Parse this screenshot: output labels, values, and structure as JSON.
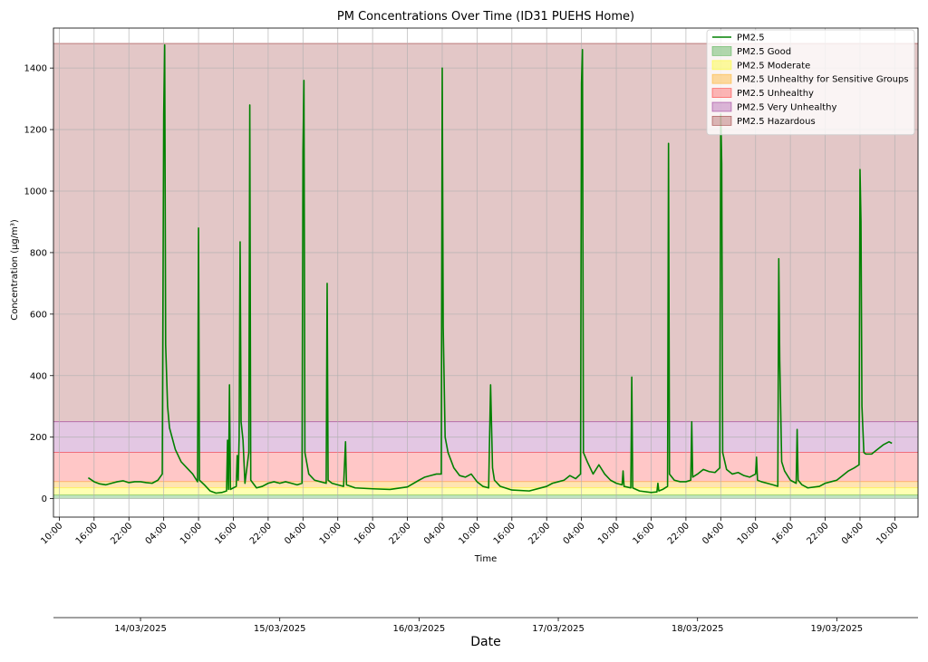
{
  "chart_data": {
    "type": "line",
    "title": "PM Concentrations Over Time (ID31 PUEHS Home)",
    "xlabel": "Time",
    "ylabel": "Concentration (µg/m³)",
    "secondary_xlabel": "Date",
    "ylim": [
      -60,
      1530
    ],
    "y_ticks": [
      0,
      200,
      400,
      600,
      800,
      1000,
      1200,
      1400
    ],
    "x_range_hours": [
      "13/03/2025 09:00",
      "19/03/2025 14:00"
    ],
    "x_ticks": [
      {
        "t": "13/03/2025 10:00",
        "label": "10:00"
      },
      {
        "t": "13/03/2025 16:00",
        "label": "16:00"
      },
      {
        "t": "13/03/2025 22:00",
        "label": "22:00"
      },
      {
        "t": "14/03/2025 04:00",
        "label": "04:00"
      },
      {
        "t": "14/03/2025 10:00",
        "label": "10:00"
      },
      {
        "t": "14/03/2025 16:00",
        "label": "16:00"
      },
      {
        "t": "14/03/2025 22:00",
        "label": "22:00"
      },
      {
        "t": "15/03/2025 04:00",
        "label": "04:00"
      },
      {
        "t": "15/03/2025 10:00",
        "label": "10:00"
      },
      {
        "t": "15/03/2025 16:00",
        "label": "16:00"
      },
      {
        "t": "15/03/2025 22:00",
        "label": "22:00"
      },
      {
        "t": "16/03/2025 04:00",
        "label": "04:00"
      },
      {
        "t": "16/03/2025 10:00",
        "label": "10:00"
      },
      {
        "t": "16/03/2025 16:00",
        "label": "16:00"
      },
      {
        "t": "16/03/2025 22:00",
        "label": "22:00"
      },
      {
        "t": "17/03/2025 04:00",
        "label": "04:00"
      },
      {
        "t": "17/03/2025 10:00",
        "label": "10:00"
      },
      {
        "t": "17/03/2025 16:00",
        "label": "16:00"
      },
      {
        "t": "17/03/2025 22:00",
        "label": "22:00"
      },
      {
        "t": "18/03/2025 04:00",
        "label": "04:00"
      },
      {
        "t": "18/03/2025 10:00",
        "label": "10:00"
      },
      {
        "t": "18/03/2025 16:00",
        "label": "16:00"
      },
      {
        "t": "18/03/2025 22:00",
        "label": "22:00"
      },
      {
        "t": "19/03/2025 04:00",
        "label": "04:00"
      },
      {
        "t": "19/03/2025 10:00",
        "label": "10:00"
      }
    ],
    "date_ticks": [
      {
        "t": "14/03/2025 00:00",
        "label": "14/03/2025"
      },
      {
        "t": "15/03/2025 00:00",
        "label": "15/03/2025"
      },
      {
        "t": "16/03/2025 00:00",
        "label": "16/03/2025"
      },
      {
        "t": "17/03/2025 00:00",
        "label": "17/03/2025"
      },
      {
        "t": "18/03/2025 00:00",
        "label": "18/03/2025"
      },
      {
        "t": "19/03/2025 00:00",
        "label": "19/03/2025"
      }
    ],
    "grid": true,
    "legend_position": "top-right",
    "bands": [
      {
        "name": "PM2.5 Good",
        "from": 0,
        "to": 12,
        "color": "#2ca02c",
        "alpha": 0.3
      },
      {
        "name": "PM2.5 Moderate",
        "from": 12,
        "to": 35.4,
        "color": "#ffff00",
        "alpha": 0.3
      },
      {
        "name": "PM2.5 Unhealthy for Sensitive Groups",
        "from": 35.4,
        "to": 55.4,
        "color": "#ffa500",
        "alpha": 0.3
      },
      {
        "name": "PM2.5 Unhealthy",
        "from": 55.4,
        "to": 150.4,
        "color": "#ff0000",
        "alpha": 0.22
      },
      {
        "name": "PM2.5 Very Unhealthy",
        "from": 150.4,
        "to": 250.4,
        "color": "#800080",
        "alpha": 0.22
      },
      {
        "name": "PM2.5 Hazardous",
        "from": 250.4,
        "to": 1480,
        "color": "#800000",
        "alpha": 0.22
      }
    ],
    "series": [
      {
        "name": "PM2.5",
        "color": "#008000",
        "points": [
          [
            "13/03/2025 15:00",
            68
          ],
          [
            "13/03/2025 16:00",
            55
          ],
          [
            "13/03/2025 17:00",
            48
          ],
          [
            "13/03/2025 18:00",
            45
          ],
          [
            "13/03/2025 19:00",
            50
          ],
          [
            "13/03/2025 20:00",
            55
          ],
          [
            "13/03/2025 21:00",
            58
          ],
          [
            "13/03/2025 22:00",
            52
          ],
          [
            "13/03/2025 23:00",
            55
          ],
          [
            "14/03/2025 00:00",
            55
          ],
          [
            "14/03/2025 01:00",
            52
          ],
          [
            "14/03/2025 02:00",
            50
          ],
          [
            "14/03/2025 03:00",
            60
          ],
          [
            "14/03/2025 03:45",
            80
          ],
          [
            "14/03/2025 04:00",
            1250
          ],
          [
            "14/03/2025 04:10",
            1475
          ],
          [
            "14/03/2025 04:20",
            500
          ],
          [
            "14/03/2025 04:40",
            300
          ],
          [
            "14/03/2025 05:00",
            230
          ],
          [
            "14/03/2025 06:00",
            160
          ],
          [
            "14/03/2025 07:00",
            120
          ],
          [
            "14/03/2025 08:00",
            100
          ],
          [
            "14/03/2025 09:00",
            80
          ],
          [
            "14/03/2025 09:50",
            55
          ],
          [
            "14/03/2025 10:00",
            880
          ],
          [
            "14/03/2025 10:10",
            60
          ],
          [
            "14/03/2025 11:00",
            45
          ],
          [
            "14/03/2025 12:00",
            25
          ],
          [
            "14/03/2025 13:00",
            18
          ],
          [
            "14/03/2025 14:00",
            20
          ],
          [
            "14/03/2025 14:50",
            25
          ],
          [
            "14/03/2025 15:00",
            190
          ],
          [
            "14/03/2025 15:10",
            30
          ],
          [
            "14/03/2025 15:20",
            370
          ],
          [
            "14/03/2025 15:30",
            30
          ],
          [
            "14/03/2025 16:30",
            40
          ],
          [
            "14/03/2025 16:40",
            140
          ],
          [
            "14/03/2025 16:50",
            60
          ],
          [
            "14/03/2025 17:00",
            200
          ],
          [
            "14/03/2025 17:10",
            835
          ],
          [
            "14/03/2025 17:20",
            250
          ],
          [
            "14/03/2025 17:40",
            190
          ],
          [
            "14/03/2025 18:00",
            50
          ],
          [
            "14/03/2025 18:40",
            150
          ],
          [
            "14/03/2025 18:50",
            1280
          ],
          [
            "14/03/2025 19:00",
            60
          ],
          [
            "14/03/2025 20:00",
            35
          ],
          [
            "14/03/2025 21:00",
            40
          ],
          [
            "14/03/2025 22:00",
            50
          ],
          [
            "14/03/2025 23:00",
            55
          ],
          [
            "15/03/2025 00:00",
            50
          ],
          [
            "15/03/2025 01:00",
            55
          ],
          [
            "15/03/2025 02:00",
            50
          ],
          [
            "15/03/2025 03:00",
            45
          ],
          [
            "15/03/2025 03:50",
            50
          ],
          [
            "15/03/2025 04:00",
            1130
          ],
          [
            "15/03/2025 04:10",
            1360
          ],
          [
            "15/03/2025 04:20",
            150
          ],
          [
            "15/03/2025 05:00",
            80
          ],
          [
            "15/03/2025 06:00",
            60
          ],
          [
            "15/03/2025 07:00",
            55
          ],
          [
            "15/03/2025 08:00",
            50
          ],
          [
            "15/03/2025 08:10",
            700
          ],
          [
            "15/03/2025 08:20",
            60
          ],
          [
            "15/03/2025 09:00",
            50
          ],
          [
            "15/03/2025 10:00",
            45
          ],
          [
            "15/03/2025 11:00",
            40
          ],
          [
            "15/03/2025 11:20",
            185
          ],
          [
            "15/03/2025 11:30",
            45
          ],
          [
            "15/03/2025 13:00",
            35
          ],
          [
            "15/03/2025 16:00",
            32
          ],
          [
            "15/03/2025 19:00",
            30
          ],
          [
            "15/03/2025 22:00",
            38
          ],
          [
            "16/03/2025 00:00",
            60
          ],
          [
            "16/03/2025 01:00",
            70
          ],
          [
            "16/03/2025 02:00",
            75
          ],
          [
            "16/03/2025 03:00",
            80
          ],
          [
            "16/03/2025 03:50",
            80
          ],
          [
            "16/03/2025 04:00",
            1400
          ],
          [
            "16/03/2025 04:10",
            560
          ],
          [
            "16/03/2025 04:30",
            200
          ],
          [
            "16/03/2025 05:00",
            150
          ],
          [
            "16/03/2025 06:00",
            100
          ],
          [
            "16/03/2025 07:00",
            75
          ],
          [
            "16/03/2025 08:00",
            70
          ],
          [
            "16/03/2025 09:00",
            80
          ],
          [
            "16/03/2025 10:00",
            55
          ],
          [
            "16/03/2025 11:00",
            40
          ],
          [
            "16/03/2025 12:00",
            35
          ],
          [
            "16/03/2025 12:20",
            370
          ],
          [
            "16/03/2025 12:40",
            100
          ],
          [
            "16/03/2025 13:00",
            60
          ],
          [
            "16/03/2025 14:00",
            40
          ],
          [
            "16/03/2025 16:00",
            28
          ],
          [
            "16/03/2025 19:00",
            25
          ],
          [
            "16/03/2025 22:00",
            40
          ],
          [
            "16/03/2025 23:00",
            50
          ],
          [
            "17/03/2025 00:00",
            55
          ],
          [
            "17/03/2025 01:00",
            60
          ],
          [
            "17/03/2025 02:00",
            75
          ],
          [
            "17/03/2025 03:00",
            65
          ],
          [
            "17/03/2025 03:50",
            80
          ],
          [
            "17/03/2025 04:00",
            1350
          ],
          [
            "17/03/2025 04:10",
            1460
          ],
          [
            "17/03/2025 04:20",
            150
          ],
          [
            "17/03/2025 05:00",
            120
          ],
          [
            "17/03/2025 06:00",
            80
          ],
          [
            "17/03/2025 07:00",
            110
          ],
          [
            "17/03/2025 08:00",
            80
          ],
          [
            "17/03/2025 09:00",
            60
          ],
          [
            "17/03/2025 10:00",
            50
          ],
          [
            "17/03/2025 11:00",
            45
          ],
          [
            "17/03/2025 11:10",
            90
          ],
          [
            "17/03/2025 11:20",
            40
          ],
          [
            "17/03/2025 12:30",
            35
          ],
          [
            "17/03/2025 12:40",
            395
          ],
          [
            "17/03/2025 12:50",
            35
          ],
          [
            "17/03/2025 14:00",
            25
          ],
          [
            "17/03/2025 16:00",
            20
          ],
          [
            "17/03/2025 17:00",
            22
          ],
          [
            "17/03/2025 17:10",
            50
          ],
          [
            "17/03/2025 17:20",
            25
          ],
          [
            "17/03/2025 18:00",
            30
          ],
          [
            "17/03/2025 18:50",
            40
          ],
          [
            "17/03/2025 19:00",
            1155
          ],
          [
            "17/03/2025 19:10",
            80
          ],
          [
            "17/03/2025 20:00",
            60
          ],
          [
            "17/03/2025 21:00",
            55
          ],
          [
            "17/03/2025 22:00",
            55
          ],
          [
            "17/03/2025 22:50",
            60
          ],
          [
            "17/03/2025 23:00",
            250
          ],
          [
            "17/03/2025 23:10",
            70
          ],
          [
            "18/03/2025 00:00",
            80
          ],
          [
            "18/03/2025 01:00",
            95
          ],
          [
            "18/03/2025 02:00",
            88
          ],
          [
            "18/03/2025 03:00",
            85
          ],
          [
            "18/03/2025 03:50",
            100
          ],
          [
            "18/03/2025 04:00",
            1250
          ],
          [
            "18/03/2025 04:10",
            1090
          ],
          [
            "18/03/2025 04:20",
            150
          ],
          [
            "18/03/2025 05:00",
            95
          ],
          [
            "18/03/2025 06:00",
            80
          ],
          [
            "18/03/2025 07:00",
            85
          ],
          [
            "18/03/2025 08:00",
            75
          ],
          [
            "18/03/2025 09:00",
            70
          ],
          [
            "18/03/2025 10:00",
            80
          ],
          [
            "18/03/2025 10:10",
            135
          ],
          [
            "18/03/2025 10:20",
            60
          ],
          [
            "18/03/2025 11:00",
            55
          ],
          [
            "18/03/2025 12:00",
            50
          ],
          [
            "18/03/2025 13:00",
            45
          ],
          [
            "18/03/2025 13:50",
            40
          ],
          [
            "18/03/2025 14:00",
            780
          ],
          [
            "18/03/2025 14:10",
            450
          ],
          [
            "18/03/2025 14:30",
            120
          ],
          [
            "18/03/2025 15:00",
            90
          ],
          [
            "18/03/2025 16:00",
            60
          ],
          [
            "18/03/2025 17:00",
            50
          ],
          [
            "18/03/2025 17:10",
            225
          ],
          [
            "18/03/2025 17:20",
            60
          ],
          [
            "18/03/2025 18:00",
            45
          ],
          [
            "18/03/2025 19:00",
            35
          ],
          [
            "18/03/2025 21:00",
            40
          ],
          [
            "18/03/2025 22:00",
            50
          ],
          [
            "18/03/2025 23:00",
            55
          ],
          [
            "19/03/2025 00:00",
            60
          ],
          [
            "19/03/2025 01:00",
            75
          ],
          [
            "19/03/2025 02:00",
            90
          ],
          [
            "19/03/2025 03:00",
            100
          ],
          [
            "19/03/2025 03:50",
            110
          ],
          [
            "19/03/2025 04:00",
            1070
          ],
          [
            "19/03/2025 04:10",
            900
          ],
          [
            "19/03/2025 04:20",
            300
          ],
          [
            "19/03/2025 04:40",
            150
          ],
          [
            "19/03/2025 05:00",
            145
          ],
          [
            "19/03/2025 06:00",
            145
          ],
          [
            "19/03/2025 07:00",
            160
          ],
          [
            "19/03/2025 08:00",
            175
          ],
          [
            "19/03/2025 09:00",
            185
          ],
          [
            "19/03/2025 09:30",
            180
          ]
        ]
      }
    ]
  }
}
